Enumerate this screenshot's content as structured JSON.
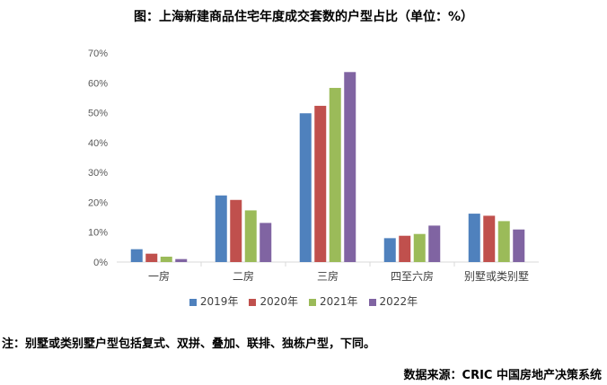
{
  "chart_data": {
    "type": "bar",
    "title": "图：上海新建商品住宅年度成交套数的户型占比（单位：%）",
    "categories": [
      "一房",
      "二房",
      "三房",
      "四至六房",
      "别墅或类别墅"
    ],
    "series": [
      {
        "name": "2019年",
        "color": "#4f81bd",
        "values": [
          4.3,
          22.3,
          49.8,
          8.0,
          16.2
        ]
      },
      {
        "name": "2020年",
        "color": "#c0504d",
        "values": [
          2.8,
          20.8,
          52.3,
          8.8,
          15.5
        ]
      },
      {
        "name": "2021年",
        "color": "#9bbb59",
        "values": [
          1.8,
          17.3,
          58.3,
          9.4,
          13.7
        ]
      },
      {
        "name": "2022年",
        "color": "#8064a2",
        "values": [
          1.0,
          13.1,
          63.6,
          12.2,
          10.9
        ]
      }
    ],
    "ylim": [
      0,
      70
    ],
    "yticks": [
      "0%",
      "10%",
      "20%",
      "30%",
      "40%",
      "50%",
      "60%",
      "70%"
    ],
    "grid": false,
    "legend_position": "bottom"
  },
  "note": "注：别墅或类别墅户型包括复式、双拼、叠加、联排、独栋户型，下同。",
  "source": "数据来源：CRIC 中国房地产决策系统"
}
